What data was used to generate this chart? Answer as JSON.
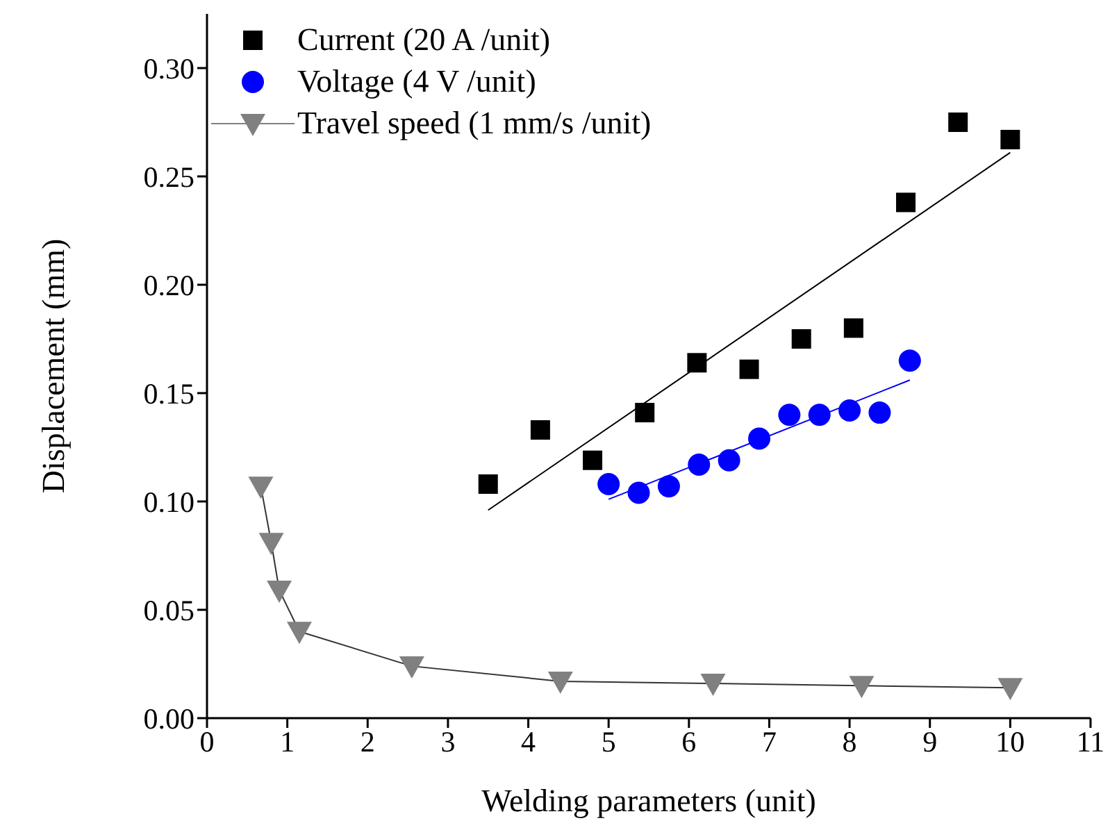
{
  "chart_data": {
    "type": "scatter",
    "xlabel": "Welding parameters (unit)",
    "ylabel": "Displacement (mm)",
    "xlim": [
      0,
      11
    ],
    "xticks": [
      0,
      1,
      2,
      3,
      4,
      5,
      6,
      7,
      8,
      9,
      10,
      11
    ],
    "ylim": [
      0,
      0.325
    ],
    "yticks": [
      {
        "value": 0,
        "label": "0.00"
      },
      {
        "value": 0.05,
        "label": "0.05"
      },
      {
        "value": 0.1,
        "label": "0.10"
      },
      {
        "value": 0.15,
        "label": "0.15"
      },
      {
        "value": 0.2,
        "label": "0.20"
      },
      {
        "value": 0.25,
        "label": "0.25"
      },
      {
        "value": 0.3,
        "label": "0.30"
      }
    ],
    "grid": false,
    "legend": "top left",
    "series": [
      {
        "name": "Current (20 A /unit)",
        "marker": "square",
        "color": "#000000",
        "x": [
          3.5,
          4.15,
          4.8,
          5.45,
          6.1,
          6.75,
          7.4,
          8.05,
          8.7,
          9.35,
          10.0
        ],
        "values": [
          0.108,
          0.133,
          0.119,
          0.141,
          0.164,
          0.161,
          0.175,
          0.18,
          0.238,
          0.275,
          0.267
        ]
      },
      {
        "name": "Voltage (4 V /unit)",
        "marker": "circle",
        "color": "#0000ff",
        "x": [
          5.0,
          5.375,
          5.75,
          6.125,
          6.5,
          6.875,
          7.25,
          7.625,
          8.0,
          8.375,
          8.75
        ],
        "values": [
          0.108,
          0.104,
          0.107,
          0.117,
          0.119,
          0.129,
          0.14,
          0.14,
          0.142,
          0.141,
          0.165
        ]
      },
      {
        "name": "Travel speed (1 mm/s /unit)",
        "type": "line",
        "marker": "triangle",
        "color": "#808080",
        "x": [
          0.67,
          0.8,
          0.9,
          1.15,
          2.55,
          4.4,
          6.3,
          8.15,
          10.0
        ],
        "values": [
          0.107,
          0.081,
          0.059,
          0.04,
          0.024,
          0.017,
          0.016,
          0.015,
          0.014
        ]
      },
      {
        "type": "line",
        "marker": "none",
        "color": "#000000",
        "x": [
          3.5,
          10.0
        ],
        "values": [
          0.096,
          0.261
        ]
      },
      {
        "type": "line",
        "marker": "none",
        "color": "#0000ff",
        "x": [
          5.0,
          8.75
        ],
        "values": [
          0.101,
          0.156
        ]
      }
    ]
  }
}
